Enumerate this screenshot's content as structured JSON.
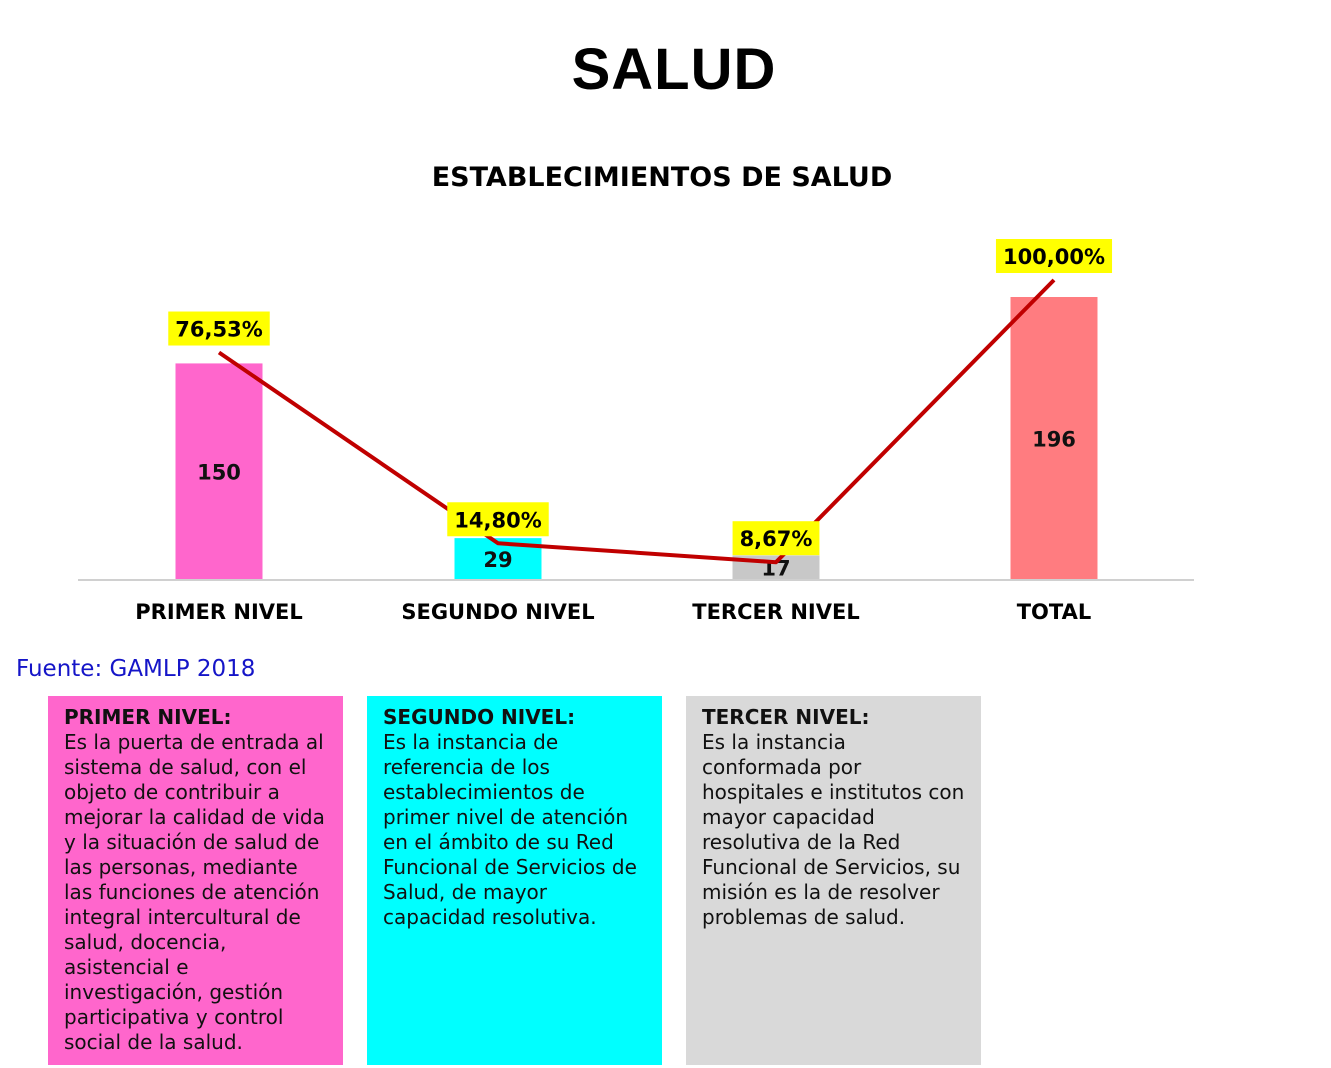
{
  "page_title": "SALUD",
  "source": "Fuente: GAMLP 2018",
  "chart_data": {
    "type": "bar",
    "title": "ESTABLECIMIENTOS DE SALUD",
    "categories": [
      "PRIMER NIVEL",
      "SEGUNDO NIVEL",
      "TERCER NIVEL",
      "TOTAL"
    ],
    "series": [
      {
        "type": "bar",
        "values": [
          150,
          29,
          17,
          196
        ],
        "colors": [
          "#ff66cc",
          "#00ffff",
          "#c8c8c8",
          "#ff7c80"
        ]
      },
      {
        "type": "line",
        "values": [
          76.53,
          14.8,
          8.67,
          100.0
        ],
        "labels": [
          "76,53%",
          "14,80%",
          "8,67%",
          "100,00%"
        ],
        "color": "#c00000",
        "label_bg": "#ffff00"
      }
    ],
    "grid": false,
    "legend": "none"
  },
  "cards": [
    {
      "title": "PRIMER NIVEL:",
      "text": "Es la puerta de entrada al sistema de salud, con el objeto de contribuir a mejorar la calidad de vida y la situación de salud de las personas, mediante las funciones de atención integral intercultural de salud, docencia, asistencial e investigación, gestión participativa y control social de la salud."
    },
    {
      "title": "SEGUNDO NIVEL:",
      "text": "Es la instancia de referencia de los establecimientos de primer nivel de atención en el ámbito de su Red Funcional de Servicios de Salud, de mayor capacidad resolutiva."
    },
    {
      "title": "TERCER NIVEL:",
      "text": "Es la instancia conformada por hospitales e institutos con mayor capacidad resolutiva de la Red Funcional de Servicios, su misión es la de resolver problemas de salud."
    }
  ]
}
